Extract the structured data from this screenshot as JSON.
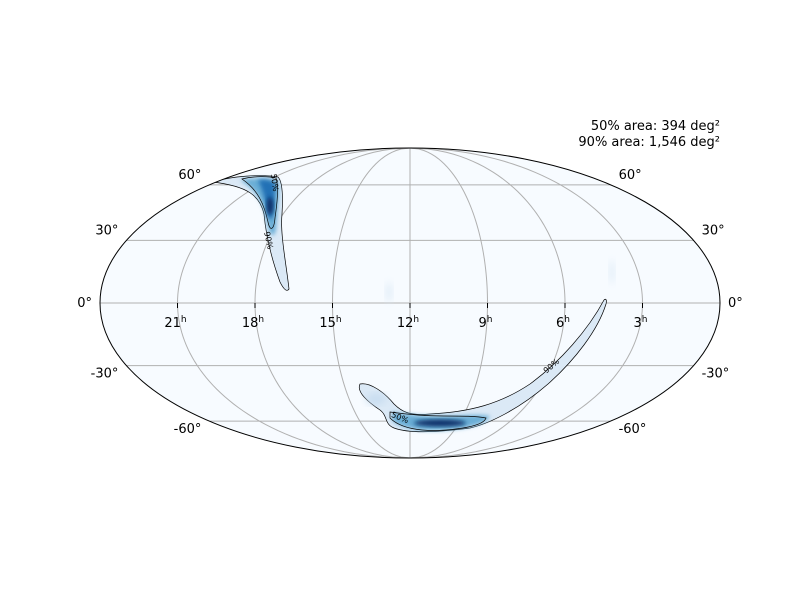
{
  "annotations": {
    "area_50": "50% area: 394 deg²",
    "area_90": "90% area: 1,546 deg²"
  },
  "map": {
    "projection": "Mollweide",
    "grid": true,
    "colormap": "Blues",
    "ra_ticks": [
      {
        "hours": 21,
        "label": "21",
        "sup": "h"
      },
      {
        "hours": 18,
        "label": "18",
        "sup": "h"
      },
      {
        "hours": 15,
        "label": "15",
        "sup": "h"
      },
      {
        "hours": 12,
        "label": "12",
        "sup": "h"
      },
      {
        "hours": 9,
        "label": "9",
        "sup": "h"
      },
      {
        "hours": 6,
        "label": "6",
        "sup": "h"
      },
      {
        "hours": 3,
        "label": "3",
        "sup": "h"
      }
    ],
    "dec_ticks": [
      {
        "deg": 60,
        "label": "60°"
      },
      {
        "deg": 30,
        "label": "30°"
      },
      {
        "deg": 0,
        "label": "0°"
      },
      {
        "deg": -30,
        "label": "-30°"
      },
      {
        "deg": -60,
        "label": "-60°"
      }
    ],
    "contour_labels": {
      "c50": "50%",
      "c90": "90%"
    }
  },
  "colors": {
    "background_fill": "#f7fbff",
    "grid": "#b0b0b0",
    "outline": "#000000",
    "light_blue": "#c6dbef",
    "mid_blue": "#6baed6",
    "dark_blue": "#2171b5",
    "darkest_blue": "#08306b"
  }
}
